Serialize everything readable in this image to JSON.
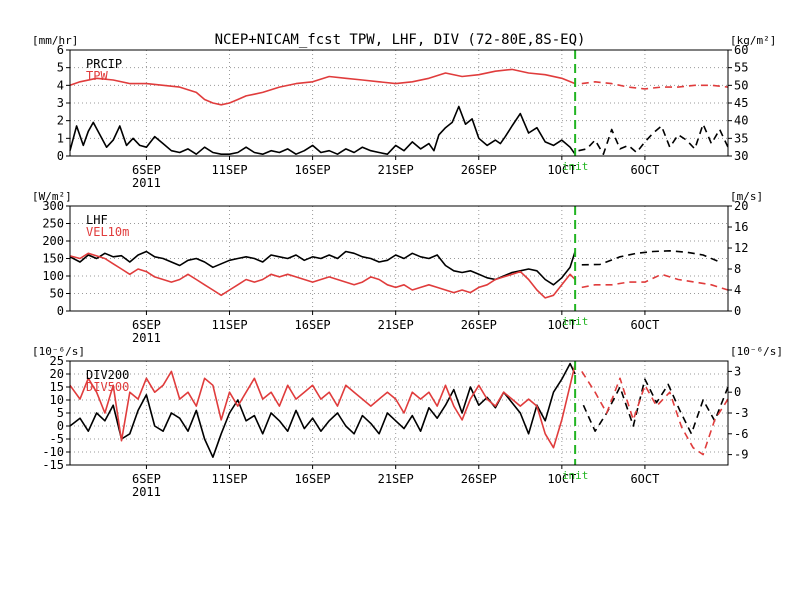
{
  "title": "NCEP+NICAM_fcst TPW, LHF, DIV (72-80E,8S-EQ)",
  "colors": {
    "black": "#000000",
    "red": "#e03c3c",
    "init_green": "#22b422"
  },
  "init_label": "init",
  "year_label": "2011",
  "x_ticks": [
    "6SEP",
    "11SEP",
    "16SEP",
    "21SEP",
    "26SEP",
    "1OCT",
    "6OCT"
  ],
  "x_tick_days": [
    6,
    11,
    16,
    21,
    26,
    31,
    36
  ],
  "x_range_days": [
    1.4,
    41.0
  ],
  "init_day": 31.8,
  "chart_data": [
    {
      "type": "line",
      "panel": "top",
      "left_unit": "[mm/hr]",
      "right_unit": "[kg/m²]",
      "left_ylim": [
        0,
        6
      ],
      "right_ylim": [
        30,
        60
      ],
      "left_ticks": [
        "0",
        "1",
        "2",
        "3",
        "4",
        "5",
        "6"
      ],
      "right_ticks": [
        "30",
        "35",
        "40",
        "45",
        "50",
        "55",
        "60"
      ],
      "series": [
        {
          "name": "PRCIP",
          "color": "#000000",
          "axis": "left",
          "x": [
            1.4,
            1.8,
            2.2,
            2.5,
            2.8,
            3.2,
            3.6,
            4.0,
            4.4,
            4.8,
            5.2,
            5.6,
            6.0,
            6.5,
            7.0,
            7.5,
            8.0,
            8.5,
            9.0,
            9.5,
            10.0,
            10.5,
            11.0,
            11.5,
            12.0,
            12.5,
            13.0,
            13.5,
            14.0,
            14.5,
            15.0,
            15.5,
            16.0,
            16.5,
            17.0,
            17.5,
            18.0,
            18.5,
            19.0,
            19.5,
            20.0,
            20.5,
            21.0,
            21.5,
            22.0,
            22.5,
            23.0,
            23.3,
            23.6,
            24.0,
            24.4,
            24.8,
            25.2,
            25.6,
            26.0,
            26.5,
            27.0,
            27.3,
            27.6,
            28.0,
            28.5,
            29.0,
            29.5,
            30.0,
            30.5,
            31.0,
            31.5,
            31.8
          ],
          "y": [
            0.3,
            1.7,
            0.6,
            1.4,
            1.9,
            1.2,
            0.5,
            0.9,
            1.7,
            0.6,
            1.0,
            0.6,
            0.5,
            1.1,
            0.7,
            0.3,
            0.2,
            0.4,
            0.1,
            0.5,
            0.2,
            0.1,
            0.1,
            0.2,
            0.5,
            0.2,
            0.1,
            0.3,
            0.2,
            0.4,
            0.1,
            0.3,
            0.6,
            0.2,
            0.3,
            0.1,
            0.4,
            0.2,
            0.5,
            0.3,
            0.2,
            0.1,
            0.6,
            0.3,
            0.8,
            0.4,
            0.7,
            0.3,
            1.2,
            1.6,
            1.9,
            2.8,
            1.8,
            2.1,
            1.0,
            0.6,
            0.9,
            0.7,
            1.1,
            1.7,
            2.4,
            1.3,
            1.6,
            0.8,
            0.6,
            0.9,
            0.5,
            0.1
          ]
        },
        {
          "name": "PRCIP",
          "color": "#000000",
          "axis": "left",
          "dashed": true,
          "x": [
            32.0,
            32.5,
            33.0,
            33.5,
            34.0,
            34.5,
            35.0,
            35.5,
            36.0,
            36.5,
            37.0,
            37.5,
            38.0,
            38.5,
            39.0,
            39.5,
            40.0,
            40.5,
            41.0
          ],
          "y": [
            0.3,
            0.4,
            0.9,
            0.1,
            1.5,
            0.4,
            0.6,
            0.2,
            0.8,
            1.3,
            1.7,
            0.5,
            1.2,
            0.9,
            0.4,
            1.8,
            0.7,
            1.5,
            0.5
          ]
        },
        {
          "name": "TPW",
          "color": "#e03c3c",
          "axis": "right",
          "x": [
            1.4,
            2.0,
            3.0,
            4.0,
            5.0,
            6.0,
            7.0,
            8.0,
            9.0,
            9.5,
            10.0,
            10.5,
            11.0,
            11.5,
            12.0,
            12.5,
            13.0,
            14.0,
            15.0,
            16.0,
            17.0,
            18.0,
            19.0,
            20.0,
            21.0,
            22.0,
            23.0,
            24.0,
            25.0,
            26.0,
            27.0,
            28.0,
            29.0,
            30.0,
            31.0,
            31.8
          ],
          "y": [
            50,
            51,
            52,
            51.5,
            50.5,
            50.5,
            50,
            49.5,
            48,
            46,
            45,
            44.5,
            45,
            46,
            47,
            47.5,
            48,
            49.5,
            50.5,
            51,
            52.5,
            52,
            51.5,
            51,
            50.5,
            51,
            52,
            53.5,
            52.5,
            53,
            54,
            54.5,
            53.5,
            53,
            52,
            50.5
          ]
        },
        {
          "name": "TPW",
          "color": "#e03c3c",
          "axis": "right",
          "dashed": true,
          "x": [
            32.2,
            33,
            34,
            35,
            36,
            37,
            38,
            39,
            40,
            41
          ],
          "y": [
            50.5,
            51,
            50.5,
            49.5,
            49,
            49.5,
            49.5,
            50,
            50,
            49.5
          ]
        }
      ]
    },
    {
      "type": "line",
      "panel": "middle",
      "left_unit": "[W/m²]",
      "right_unit": "[m/s]",
      "left_ylim": [
        0,
        300
      ],
      "right_ylim": [
        0,
        20
      ],
      "left_ticks": [
        "0",
        "50",
        "100",
        "150",
        "200",
        "250",
        "300"
      ],
      "right_ticks": [
        "0",
        "4",
        "8",
        "12",
        "16",
        "20"
      ],
      "series": [
        {
          "name": "LHF",
          "color": "#000000",
          "axis": "left",
          "x": [
            1.4,
            2.0,
            2.5,
            3.0,
            3.5,
            4.0,
            4.5,
            5.0,
            5.5,
            6.0,
            6.5,
            7.0,
            7.5,
            8.0,
            8.5,
            9.0,
            9.5,
            10.0,
            10.5,
            11.0,
            11.5,
            12.0,
            12.5,
            13.0,
            13.5,
            14.0,
            14.5,
            15.0,
            15.5,
            16.0,
            16.5,
            17.0,
            17.5,
            18.0,
            18.5,
            19.0,
            19.5,
            20.0,
            20.5,
            21.0,
            21.5,
            22.0,
            22.5,
            23.0,
            23.5,
            24.0,
            24.5,
            25.0,
            25.5,
            26.0,
            26.5,
            27.0,
            27.5,
            28.0,
            28.5,
            29.0,
            29.5,
            30.0,
            30.5,
            31.0,
            31.5,
            31.8
          ],
          "y": [
            155,
            140,
            160,
            150,
            165,
            155,
            158,
            140,
            160,
            170,
            155,
            150,
            140,
            130,
            145,
            150,
            140,
            125,
            135,
            145,
            150,
            155,
            150,
            140,
            160,
            155,
            150,
            160,
            145,
            155,
            150,
            160,
            150,
            170,
            165,
            155,
            150,
            140,
            145,
            160,
            150,
            165,
            155,
            150,
            160,
            130,
            115,
            110,
            115,
            105,
            95,
            90,
            100,
            110,
            115,
            120,
            115,
            90,
            75,
            95,
            125,
            170
          ]
        },
        {
          "name": "LHF",
          "color": "#000000",
          "axis": "left",
          "dashed": true,
          "x": [
            32.2,
            33.3,
            34.5,
            35.5,
            36.5,
            37.5,
            38.5,
            39.5,
            40.5
          ],
          "y": [
            132,
            133,
            155,
            165,
            170,
            172,
            168,
            160,
            140
          ]
        },
        {
          "name": "VEL10m",
          "color": "#e03c3c",
          "axis": "right",
          "x": [
            1.4,
            2.0,
            2.5,
            3.0,
            3.5,
            4.0,
            4.5,
            5.0,
            5.5,
            6.0,
            6.5,
            7.0,
            7.5,
            8.0,
            8.5,
            9.0,
            9.5,
            10.0,
            10.5,
            11.0,
            11.5,
            12.0,
            12.5,
            13.0,
            13.5,
            14.0,
            14.5,
            15.0,
            15.5,
            16.0,
            16.5,
            17.0,
            17.5,
            18.0,
            18.5,
            19.0,
            19.5,
            20.0,
            20.5,
            21.0,
            21.5,
            22.0,
            22.5,
            23.0,
            23.5,
            24.0,
            24.5,
            25.0,
            25.5,
            26.0,
            26.5,
            27.0,
            27.5,
            28.0,
            28.5,
            29.0,
            29.5,
            30.0,
            30.5,
            31.0,
            31.5,
            31.8
          ],
          "y": [
            10.5,
            10,
            11,
            10.5,
            10,
            9,
            8,
            7,
            8,
            7.5,
            6.5,
            6,
            5.5,
            6,
            7,
            6,
            5,
            4,
            3,
            4,
            5,
            6,
            5.5,
            6,
            7,
            6.5,
            7,
            6.5,
            6,
            5.5,
            6,
            6.5,
            6,
            5.5,
            5,
            5.5,
            6.5,
            6,
            5,
            4.5,
            5,
            4,
            4.5,
            5,
            4.5,
            4,
            3.5,
            4,
            3.5,
            4.5,
            5,
            6,
            6.5,
            7,
            7.5,
            6,
            4,
            2.5,
            3,
            5,
            7,
            6
          ]
        },
        {
          "name": "VEL10m",
          "color": "#e03c3c",
          "axis": "right",
          "dashed": true,
          "x": [
            32.2,
            33,
            34,
            35,
            36,
            37,
            37.5,
            38,
            39,
            40,
            41
          ],
          "y": [
            4.5,
            5,
            5,
            5.5,
            5.5,
            7,
            6.5,
            6,
            5.5,
            5,
            4
          ]
        }
      ]
    },
    {
      "type": "line",
      "panel": "bottom",
      "left_unit": "[10⁻⁶/s]",
      "right_unit": "[10⁻⁶/s]",
      "left_ylim": [
        -15,
        25
      ],
      "right_ylim": [
        -10.5,
        4.5
      ],
      "left_ticks": [
        "-15",
        "-10",
        "-5",
        "0",
        "5",
        "10",
        "15",
        "20",
        "25"
      ],
      "right_ticks": [
        "-9",
        "-6",
        "-3",
        "0",
        "3"
      ],
      "right_tick_values": [
        -9,
        -6,
        -3,
        0,
        3
      ],
      "series": [
        {
          "name": "DIV200",
          "color": "#000000",
          "axis": "left",
          "x": [
            1.4,
            2.0,
            2.5,
            3.0,
            3.5,
            4.0,
            4.5,
            5.0,
            5.5,
            6.0,
            6.5,
            7.0,
            7.5,
            8.0,
            8.5,
            9.0,
            9.5,
            10.0,
            10.5,
            11.0,
            11.5,
            12.0,
            12.5,
            13.0,
            13.5,
            14.0,
            14.5,
            15.0,
            15.5,
            16.0,
            16.5,
            17.0,
            17.5,
            18.0,
            18.5,
            19.0,
            19.5,
            20.0,
            20.5,
            21.0,
            21.5,
            22.0,
            22.5,
            23.0,
            23.5,
            24.0,
            24.5,
            25.0,
            25.5,
            26.0,
            26.5,
            27.0,
            27.5,
            28.0,
            28.5,
            29.0,
            29.5,
            30.0,
            30.5,
            31.0,
            31.5,
            31.8
          ],
          "y": [
            0,
            3,
            -2,
            5,
            2,
            8,
            -5,
            -3,
            6,
            12,
            0,
            -2,
            5,
            3,
            -2,
            6,
            -5,
            -12,
            -3,
            5,
            10,
            2,
            4,
            -3,
            5,
            2,
            -2,
            6,
            -1,
            3,
            -2,
            2,
            5,
            0,
            -3,
            4,
            1,
            -3,
            5,
            2,
            -1,
            4,
            -2,
            7,
            3,
            8,
            14,
            5,
            15,
            8,
            11,
            7,
            13,
            9,
            5,
            -3,
            8,
            2,
            13,
            18,
            24,
            20
          ]
        },
        {
          "name": "DIV200",
          "color": "#000000",
          "axis": "left",
          "dashed": true,
          "x": [
            32.3,
            33,
            33.7,
            34.5,
            35.3,
            36.0,
            36.7,
            37.4,
            38.1,
            38.8,
            39.5,
            40.2,
            41.0
          ],
          "y": [
            8,
            -2,
            5,
            15,
            0,
            18,
            9,
            16,
            6,
            -3,
            10,
            2,
            15
          ]
        },
        {
          "name": "DIV500",
          "color": "#e03c3c",
          "axis": "right",
          "x": [
            1.4,
            2.0,
            2.5,
            3.0,
            3.5,
            4.0,
            4.5,
            5.0,
            5.5,
            6.0,
            6.5,
            7.0,
            7.5,
            8.0,
            8.5,
            9.0,
            9.5,
            10.0,
            10.5,
            11.0,
            11.5,
            12.0,
            12.5,
            13.0,
            13.5,
            14.0,
            14.5,
            15.0,
            15.5,
            16.0,
            16.5,
            17.0,
            17.5,
            18.0,
            18.5,
            19.0,
            19.5,
            20.0,
            20.5,
            21.0,
            21.5,
            22.0,
            22.5,
            23.0,
            23.5,
            24.0,
            24.5,
            25.0,
            25.5,
            26.0,
            26.5,
            27.0,
            27.5,
            28.0,
            28.5,
            29.0,
            29.5,
            30.0,
            30.5,
            31.0,
            31.5,
            31.8
          ],
          "y": [
            1,
            -1,
            2,
            0,
            -3,
            1,
            -7,
            0,
            -1,
            2,
            0,
            1,
            3,
            -1,
            0,
            -2,
            2,
            1,
            -4,
            0,
            -2,
            0,
            2,
            -1,
            0,
            -2,
            1,
            -1,
            0,
            1,
            -1,
            0,
            -2,
            1,
            0,
            -1,
            -2,
            -1,
            0,
            -1,
            -3,
            0,
            -1,
            0,
            -2,
            1,
            -2,
            -4,
            -1,
            1,
            -1,
            -2,
            0,
            -1,
            -2,
            -1,
            -2,
            -6,
            -8,
            -4,
            1,
            4
          ]
        },
        {
          "name": "DIV500",
          "color": "#e03c3c",
          "axis": "right",
          "dashed": true,
          "x": [
            32.2,
            33,
            33.7,
            34.5,
            35.3,
            36.0,
            36.7,
            37.5,
            38.2,
            38.9,
            39.5,
            40.2,
            41.0
          ],
          "y": [
            3,
            0,
            -3,
            2,
            -4,
            1,
            -2,
            0,
            -5,
            -8,
            -9,
            -4,
            -1
          ]
        }
      ]
    }
  ]
}
